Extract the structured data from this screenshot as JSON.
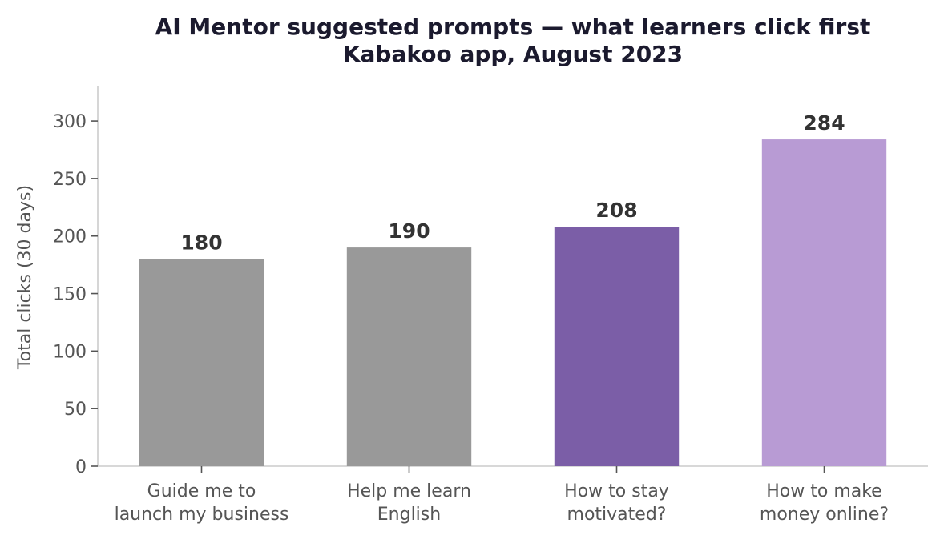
{
  "chart_data": {
    "type": "bar",
    "title": "AI Mentor suggested prompts — what learners click first",
    "subtitle": "Kabakoo app, August 2023",
    "xlabel": "",
    "ylabel": "Total clicks (30 days)",
    "ylim": [
      0,
      330
    ],
    "yticks": [
      0,
      50,
      100,
      150,
      200,
      250,
      300
    ],
    "grid": false,
    "categories": [
      [
        "Guide me to",
        "launch my business"
      ],
      [
        "Help me learn",
        "English"
      ],
      [
        "How to stay",
        "motivated?"
      ],
      [
        "How to make",
        "money online?"
      ]
    ],
    "values": [
      180,
      190,
      208,
      284
    ],
    "colors": [
      "#999999",
      "#999999",
      "#7b5ea7",
      "#b89bd4"
    ]
  }
}
